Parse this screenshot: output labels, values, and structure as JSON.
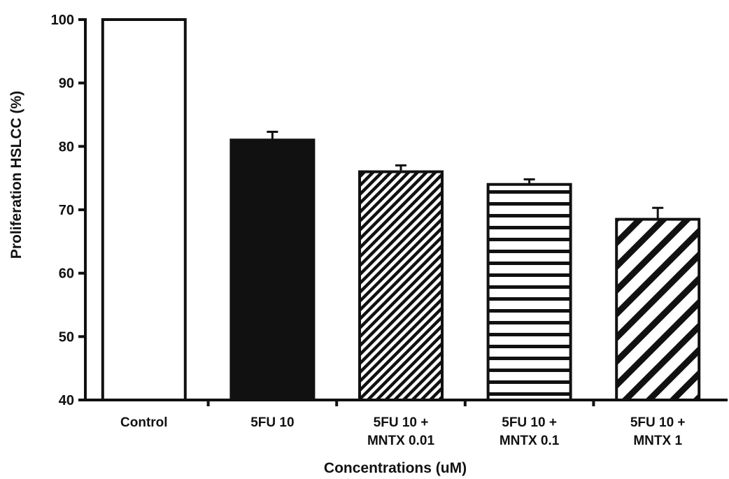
{
  "chart_data": {
    "type": "bar",
    "categories": [
      [
        "Control"
      ],
      [
        "5FU 10"
      ],
      [
        "5FU 10 +",
        "MNTX 0.01"
      ],
      [
        "5FU 10 +",
        "MNTX 0.1"
      ],
      [
        "5FU 10 +",
        "MNTX 1"
      ]
    ],
    "values": [
      100,
      81,
      76,
      74,
      68.5
    ],
    "errors": [
      0,
      1.3,
      1.0,
      0.8,
      1.8
    ],
    "patterns": [
      "white",
      "solid-black",
      "diagonal-fine",
      "horizontal",
      "diagonal-coarse"
    ],
    "xlabel": "Concentrations (uM)",
    "ylabel": "Proliferation HSLCC (%)",
    "ylim": [
      40,
      100
    ],
    "yticks": [
      40,
      50,
      60,
      70,
      80,
      90,
      100
    ],
    "grid": false,
    "colors": {
      "ink": "#111111",
      "fill": "#ffffff"
    }
  }
}
